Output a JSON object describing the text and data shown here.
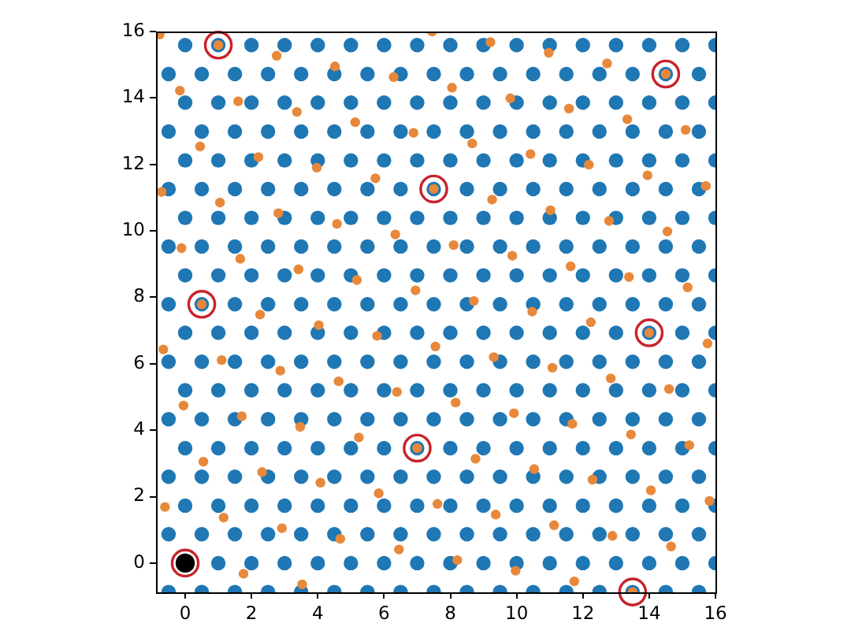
{
  "chart_data": {
    "type": "scatter",
    "marker": "circle",
    "xlim": [
      -0.88,
      16
    ],
    "ylim": [
      -0.88,
      16
    ],
    "xticks": [
      0,
      2,
      4,
      6,
      8,
      10,
      12,
      14,
      16
    ],
    "yticks": [
      0,
      2,
      4,
      6,
      8,
      10,
      12,
      14,
      16
    ],
    "series": [
      {
        "color": "#1f77b4",
        "x": [
          -0.5,
          0.5,
          1.5,
          2.5,
          3.5,
          4.5,
          5.5,
          6.5,
          7.5,
          8.5,
          9.5,
          10.5,
          11.5,
          12.5,
          13.5,
          14.5,
          15.5,
          1,
          2,
          3,
          4,
          5,
          6,
          7,
          8,
          9,
          10,
          11,
          12,
          13,
          14,
          15,
          16,
          -0.5,
          0.5,
          1.5,
          2.5,
          3.5,
          4.5,
          5.5,
          6.5,
          7.5,
          8.5,
          9.5,
          10.5,
          11.5,
          12.5,
          13.5,
          14.5,
          15.5,
          0,
          1,
          2,
          3,
          4,
          5,
          6,
          7,
          8,
          9,
          10,
          11,
          12,
          13,
          14,
          15,
          16,
          -0.5,
          0.5,
          1.5,
          2.5,
          3.5,
          4.5,
          5.5,
          6.5,
          7.5,
          8.5,
          9.5,
          10.5,
          11.5,
          12.5,
          13.5,
          14.5,
          15.5,
          0,
          1,
          2,
          3,
          4,
          5,
          6,
          7,
          8,
          9,
          10,
          11,
          12,
          13,
          14,
          15,
          16,
          -0.5,
          0.5,
          1.5,
          2.5,
          3.5,
          4.5,
          5.5,
          6.5,
          7.5,
          8.5,
          9.5,
          10.5,
          11.5,
          12.5,
          13.5,
          14.5,
          15.5,
          0,
          1,
          2,
          3,
          4,
          5,
          6,
          7,
          8,
          9,
          10,
          11,
          12,
          13,
          14,
          15,
          16,
          -0.5,
          0.5,
          1.5,
          2.5,
          3.5,
          4.5,
          5.5,
          6.5,
          7.5,
          8.5,
          9.5,
          10.5,
          11.5,
          12.5,
          13.5,
          14.5,
          15.5,
          0,
          1,
          2,
          3,
          4,
          5,
          6,
          7,
          8,
          9,
          10,
          11,
          12,
          13,
          14,
          15,
          16,
          -0.5,
          0.5,
          1.5,
          2.5,
          3.5,
          4.5,
          5.5,
          6.5,
          7.5,
          8.5,
          9.5,
          10.5,
          11.5,
          12.5,
          13.5,
          14.5,
          15.5,
          0,
          1,
          2,
          3,
          4,
          5,
          6,
          7,
          8,
          9,
          10,
          11,
          12,
          13,
          14,
          15,
          16,
          -0.5,
          0.5,
          1.5,
          2.5,
          3.5,
          4.5,
          5.5,
          6.5,
          7.5,
          8.5,
          9.5,
          10.5,
          11.5,
          12.5,
          13.5,
          14.5,
          15.5,
          0,
          1,
          2,
          3,
          4,
          5,
          6,
          7,
          8,
          9,
          10,
          11,
          12,
          13,
          14,
          15,
          16,
          -0.5,
          0.5,
          1.5,
          2.5,
          3.5,
          4.5,
          5.5,
          6.5,
          7.5,
          8.5,
          9.5,
          10.5,
          11.5,
          12.5,
          13.5,
          14.5,
          15.5,
          0,
          1,
          2,
          3,
          4,
          5,
          6,
          7,
          8,
          9,
          10,
          11,
          12,
          13,
          14,
          15,
          16,
          -0.5,
          0.5,
          1.5,
          2.5,
          3.5,
          4.5,
          5.5,
          6.5,
          7.5,
          8.5,
          9.5,
          10.5,
          11.5,
          12.5,
          13.5,
          14.5,
          15.5,
          0,
          1,
          2,
          3,
          4,
          5,
          6,
          7,
          8,
          9,
          10,
          11,
          12,
          13,
          14,
          15,
          16,
          -0.5,
          0.5,
          1.5,
          2.5,
          3.5,
          4.5,
          5.5,
          6.5,
          7.5,
          8.5,
          9.5,
          10.5,
          11.5,
          12.5,
          13.5,
          14.5,
          15.5,
          0,
          1,
          2,
          3,
          4,
          5,
          6,
          7,
          8,
          9,
          10,
          11,
          12,
          13,
          14,
          15,
          16
        ],
        "values": [
          -0.87,
          -0.87,
          -0.87,
          -0.87,
          -0.87,
          -0.87,
          -0.87,
          -0.87,
          -0.87,
          -0.87,
          -0.87,
          -0.87,
          -0.87,
          -0.87,
          -0.87,
          -0.87,
          -0.87,
          0,
          0,
          0,
          0,
          0,
          0,
          0,
          0,
          0,
          0,
          0,
          0,
          0,
          0,
          0,
          0,
          0.87,
          0.87,
          0.87,
          0.87,
          0.87,
          0.87,
          0.87,
          0.87,
          0.87,
          0.87,
          0.87,
          0.87,
          0.87,
          0.87,
          0.87,
          0.87,
          0.87,
          1.73,
          1.73,
          1.73,
          1.73,
          1.73,
          1.73,
          1.73,
          1.73,
          1.73,
          1.73,
          1.73,
          1.73,
          1.73,
          1.73,
          1.73,
          1.73,
          1.73,
          2.6,
          2.6,
          2.6,
          2.6,
          2.6,
          2.6,
          2.6,
          2.6,
          2.6,
          2.6,
          2.6,
          2.6,
          2.6,
          2.6,
          2.6,
          2.6,
          2.6,
          3.46,
          3.46,
          3.46,
          3.46,
          3.46,
          3.46,
          3.46,
          3.46,
          3.46,
          3.46,
          3.46,
          3.46,
          3.46,
          3.46,
          3.46,
          3.46,
          3.46,
          4.33,
          4.33,
          4.33,
          4.33,
          4.33,
          4.33,
          4.33,
          4.33,
          4.33,
          4.33,
          4.33,
          4.33,
          4.33,
          4.33,
          4.33,
          4.33,
          4.33,
          5.2,
          5.2,
          5.2,
          5.2,
          5.2,
          5.2,
          5.2,
          5.2,
          5.2,
          5.2,
          5.2,
          5.2,
          5.2,
          5.2,
          5.2,
          5.2,
          5.2,
          6.06,
          6.06,
          6.06,
          6.06,
          6.06,
          6.06,
          6.06,
          6.06,
          6.06,
          6.06,
          6.06,
          6.06,
          6.06,
          6.06,
          6.06,
          6.06,
          6.06,
          6.93,
          6.93,
          6.93,
          6.93,
          6.93,
          6.93,
          6.93,
          6.93,
          6.93,
          6.93,
          6.93,
          6.93,
          6.93,
          6.93,
          6.93,
          6.93,
          6.93,
          7.79,
          7.79,
          7.79,
          7.79,
          7.79,
          7.79,
          7.79,
          7.79,
          7.79,
          7.79,
          7.79,
          7.79,
          7.79,
          7.79,
          7.79,
          7.79,
          7.79,
          8.66,
          8.66,
          8.66,
          8.66,
          8.66,
          8.66,
          8.66,
          8.66,
          8.66,
          8.66,
          8.66,
          8.66,
          8.66,
          8.66,
          8.66,
          8.66,
          8.66,
          9.53,
          9.53,
          9.53,
          9.53,
          9.53,
          9.53,
          9.53,
          9.53,
          9.53,
          9.53,
          9.53,
          9.53,
          9.53,
          9.53,
          9.53,
          9.53,
          9.53,
          10.39,
          10.39,
          10.39,
          10.39,
          10.39,
          10.39,
          10.39,
          10.39,
          10.39,
          10.39,
          10.39,
          10.39,
          10.39,
          10.39,
          10.39,
          10.39,
          10.39,
          11.26,
          11.26,
          11.26,
          11.26,
          11.26,
          11.26,
          11.26,
          11.26,
          11.26,
          11.26,
          11.26,
          11.26,
          11.26,
          11.26,
          11.26,
          11.26,
          11.26,
          12.12,
          12.12,
          12.12,
          12.12,
          12.12,
          12.12,
          12.12,
          12.12,
          12.12,
          12.12,
          12.12,
          12.12,
          12.12,
          12.12,
          12.12,
          12.12,
          12.12,
          12.99,
          12.99,
          12.99,
          12.99,
          12.99,
          12.99,
          12.99,
          12.99,
          12.99,
          12.99,
          12.99,
          12.99,
          12.99,
          12.99,
          12.99,
          12.99,
          12.99,
          13.86,
          13.86,
          13.86,
          13.86,
          13.86,
          13.86,
          13.86,
          13.86,
          13.86,
          13.86,
          13.86,
          13.86,
          13.86,
          13.86,
          13.86,
          13.86,
          13.86,
          14.72,
          14.72,
          14.72,
          14.72,
          14.72,
          14.72,
          14.72,
          14.72,
          14.72,
          14.72,
          14.72,
          14.72,
          14.72,
          14.72,
          14.72,
          14.72,
          14.72,
          15.59,
          15.59,
          15.59,
          15.59,
          15.59,
          15.59,
          15.59,
          15.59,
          15.59,
          15.59,
          15.59,
          15.59,
          15.59,
          15.59,
          15.59,
          15.59,
          15.59
        ]
      },
      {
        "color": "#e8883a",
        "x": [
          1.76,
          3.53,
          -0.61,
          1.16,
          2.92,
          4.68,
          6.45,
          8.21,
          9.97,
          11.74,
          13.5,
          0.55,
          2.32,
          4.08,
          5.84,
          7.61,
          9.37,
          11.13,
          12.89,
          14.66,
          -0.05,
          1.71,
          3.47,
          5.24,
          7,
          8.76,
          10.53,
          12.29,
          14.05,
          15.82,
          -0.66,
          1.1,
          2.87,
          4.63,
          6.39,
          8.16,
          9.92,
          11.68,
          13.45,
          15.21,
          0.5,
          2.26,
          4.03,
          5.79,
          7.55,
          9.31,
          11.08,
          12.84,
          14.6,
          -0.11,
          1.66,
          3.42,
          5.18,
          6.95,
          8.71,
          10.47,
          12.24,
          14,
          15.76,
          -0.71,
          1.05,
          2.81,
          4.58,
          6.34,
          8.1,
          9.87,
          11.63,
          13.39,
          15.16,
          0.45,
          2.21,
          3.97,
          5.74,
          7.5,
          9.26,
          11.02,
          12.79,
          14.55,
          -0.16,
          1.6,
          3.37,
          5.13,
          6.89,
          8.66,
          10.42,
          12.18,
          13.95,
          15.71,
          -0.77,
          1,
          2.76,
          4.52,
          6.29,
          8.05,
          9.81,
          11.58,
          13.34,
          15.1,
          7.45,
          9.21,
          10.97,
          12.73,
          14.5
        ],
        "values": [
          -0.32,
          -0.64,
          1.69,
          1.37,
          1.05,
          0.73,
          0.41,
          0.09,
          -0.23,
          -0.55,
          -0.87,
          3.05,
          2.74,
          2.42,
          2.1,
          1.78,
          1.46,
          1.14,
          0.82,
          0.5,
          4.74,
          4.42,
          4.1,
          3.78,
          3.46,
          3.14,
          2.83,
          2.51,
          2.19,
          1.87,
          6.43,
          6.11,
          5.79,
          5.47,
          5.15,
          4.83,
          4.51,
          4.19,
          3.87,
          3.55,
          7.79,
          7.48,
          7.16,
          6.84,
          6.52,
          6.2,
          5.88,
          5.56,
          5.24,
          9.48,
          9.16,
          8.84,
          8.52,
          8.21,
          7.89,
          7.57,
          7.25,
          6.93,
          6.61,
          11.17,
          10.85,
          10.53,
          10.21,
          9.89,
          9.57,
          9.25,
          8.93,
          8.61,
          8.3,
          12.54,
          12.22,
          11.9,
          11.58,
          11.26,
          10.94,
          10.62,
          10.3,
          9.98,
          14.22,
          13.9,
          13.58,
          13.27,
          12.95,
          12.63,
          12.31,
          11.99,
          11.67,
          11.35,
          15.91,
          15.59,
          15.27,
          14.95,
          14.63,
          14.31,
          13.99,
          13.68,
          13.36,
          13.04,
          16,
          15.68,
          15.36,
          15.04,
          14.72
        ]
      },
      {
        "color": "#c8232c",
        "x": [
          0,
          7,
          0.5,
          14,
          7.5,
          1,
          14.5,
          13.5
        ],
        "values": [
          0,
          3.46,
          7.79,
          6.93,
          11.26,
          15.59,
          14.72,
          -0.87
        ]
      },
      {
        "color": "#000000",
        "x": [
          0
        ],
        "values": [
          0
        ]
      }
    ]
  }
}
